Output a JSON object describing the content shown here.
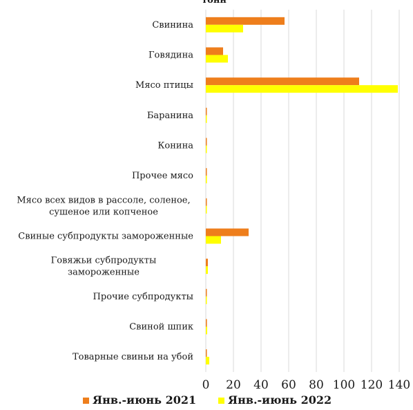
{
  "chart_data": {
    "type": "bar",
    "orientation": "horizontal",
    "title": "тонн",
    "categories": [
      [
        "Свинина"
      ],
      [
        "Говядина"
      ],
      [
        "Мясо птицы"
      ],
      [
        "Баранина"
      ],
      [
        "Конина"
      ],
      [
        "Прочее мясо"
      ],
      [
        "Мясо всех видов в рассоле, соленое,",
        "сушеное или копченое"
      ],
      [
        "Свиные субпродукты замороженные"
      ],
      [
        "Говяжьи субпродукты",
        "замороженные"
      ],
      [
        "Прочие субпродукты"
      ],
      [
        "Свиной шпик"
      ],
      [
        "Товарные свиньи на убой"
      ]
    ],
    "series": [
      {
        "name": "Янв.-июнь 2021",
        "color": "#ee7e1c",
        "values": [
          57,
          12.5,
          111,
          0.5,
          0.3,
          0.3,
          0.3,
          31,
          1.5,
          0.5,
          0.8,
          0.3
        ]
      },
      {
        "name": "Янв.-июнь 2022",
        "color": "#ffff00",
        "values": [
          27,
          16,
          139,
          0.3,
          0.2,
          0.8,
          0.2,
          11,
          1.5,
          0.2,
          1.0,
          2.5
        ]
      }
    ],
    "xlim": [
      0,
      140
    ],
    "xticks": [
      "0",
      "20",
      "40",
      "60",
      "80",
      "100",
      "120",
      "140"
    ],
    "grid": true,
    "legend": "bottom"
  }
}
